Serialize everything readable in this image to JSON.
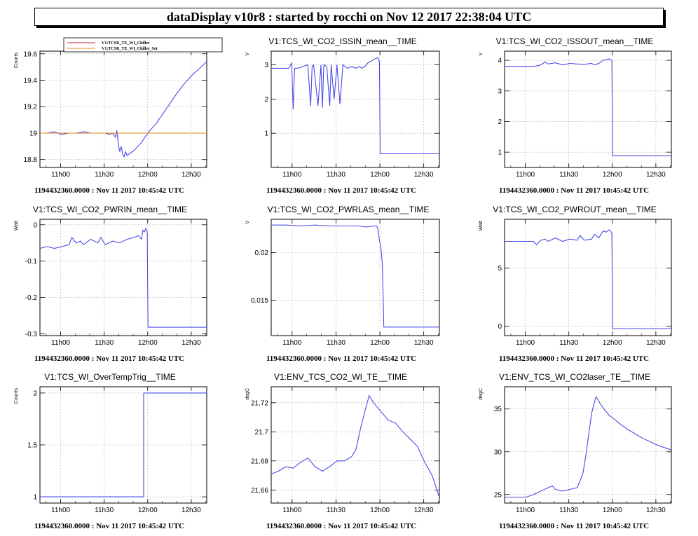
{
  "window": {
    "title": "dataDisplay v10r8 : started by rocchi on Nov 12 2017 22:38:04 UTC"
  },
  "colors": {
    "trace": "#4a4ae8",
    "chiller_set": "#e8851a",
    "chiller_raw": "#c8283c"
  },
  "chart_data": [
    {
      "type": "line",
      "title": "",
      "ylabel": "Counts",
      "xlabel": "",
      "footer": "1194432360.0000 : Nov 11 2017 10:45:42 UTC",
      "xticks": [
        "11h00",
        "11h30",
        "12h00",
        "12h30"
      ],
      "xtick_minutes": [
        14.3,
        44.3,
        74.3,
        104.3
      ],
      "xlim": [
        0,
        115
      ],
      "ylim": [
        18.74,
        19.62
      ],
      "yticks": [
        18.8,
        19,
        19.2,
        19.4,
        19.6
      ],
      "ytick_labels": [
        "18.8",
        "19",
        "19.2",
        "19.4",
        "19.6"
      ],
      "legend": {
        "position": "top",
        "entries": [
          "V1:TCSR_TE_WI_Chiller",
          "V1:TCSR_TE_WI_Chiller_Set"
        ]
      },
      "series": [
        {
          "name": "V1:TCSR_TE_WI_Chiller",
          "color": "#4a4ae8",
          "x": [
            0,
            5,
            10,
            15,
            20,
            25,
            30,
            35,
            40,
            45,
            48,
            50,
            52,
            53,
            54,
            55,
            56,
            57,
            58,
            59,
            60,
            65,
            70,
            75,
            80,
            85,
            90,
            95,
            100,
            105,
            110,
            115
          ],
          "y": [
            19.0,
            19.0,
            19.01,
            18.99,
            19.0,
            19.0,
            19.01,
            19.0,
            19.0,
            19.0,
            18.99,
            19.0,
            18.97,
            19.02,
            18.92,
            18.86,
            18.9,
            18.84,
            18.82,
            18.86,
            18.83,
            18.87,
            18.93,
            19.01,
            19.07,
            19.15,
            19.23,
            19.31,
            19.38,
            19.44,
            19.49,
            19.54
          ]
        },
        {
          "name": "V1:TCSR_TE_WI_Chiller_Set",
          "color": "#e8851a",
          "x": [
            0,
            115
          ],
          "y": [
            19.0,
            19.0
          ]
        }
      ]
    },
    {
      "type": "line",
      "title": "V1:TCS_WI_CO2_ISSIN_mean__TIME",
      "ylabel": "V",
      "xlabel": "",
      "footer": "1194432360.0000 : Nov 11 2017 10:45:42 UTC",
      "xticks": [
        "11h00",
        "11h30",
        "12h00",
        "12h30"
      ],
      "xtick_minutes": [
        14.3,
        44.3,
        74.3,
        104.3
      ],
      "xlim": [
        0,
        115
      ],
      "ylim": [
        0.0,
        3.4
      ],
      "yticks": [
        1,
        2,
        3
      ],
      "ytick_labels": [
        "1",
        "2",
        "3"
      ],
      "series": [
        {
          "name": "",
          "color": "#4a4ae8",
          "x": [
            0,
            12,
            14,
            15,
            16,
            18,
            25,
            27,
            28,
            29,
            32,
            34,
            35,
            36,
            38,
            40,
            41,
            43,
            45,
            47,
            49,
            52,
            55,
            58,
            60,
            62,
            64,
            66,
            70,
            72,
            73,
            74,
            74.5,
            115
          ],
          "y": [
            2.9,
            2.9,
            3.05,
            1.7,
            2.9,
            2.9,
            3.0,
            1.8,
            2.95,
            3.0,
            1.8,
            3.0,
            1.75,
            3.0,
            2.95,
            1.8,
            3.0,
            2.0,
            3.0,
            1.85,
            3.0,
            2.9,
            2.95,
            2.9,
            2.95,
            2.9,
            2.95,
            3.05,
            3.15,
            3.2,
            3.2,
            3.1,
            0.4,
            0.4
          ]
        }
      ]
    },
    {
      "type": "line",
      "title": "V1:TCS_WI_CO2_ISSOUT_mean__TIME",
      "ylabel": "V",
      "xlabel": "",
      "footer": "1194432360.0000 : Nov 11 2017 10:45:42 UTC",
      "xticks": [
        "11h00",
        "11h30",
        "12h00",
        "12h30"
      ],
      "xtick_minutes": [
        14.3,
        44.3,
        74.3,
        104.3
      ],
      "xlim": [
        0,
        115
      ],
      "ylim": [
        0.5,
        4.3
      ],
      "yticks": [
        1,
        2,
        3,
        4
      ],
      "ytick_labels": [
        "1",
        "2",
        "3",
        "4"
      ],
      "series": [
        {
          "name": "",
          "color": "#4a4ae8",
          "x": [
            0,
            20,
            25,
            28,
            30,
            35,
            40,
            45,
            50,
            55,
            60,
            62,
            65,
            68,
            70,
            72,
            73,
            74,
            74.5,
            115
          ],
          "y": [
            3.8,
            3.8,
            3.85,
            3.95,
            3.88,
            3.92,
            3.85,
            3.9,
            3.88,
            3.87,
            3.9,
            3.85,
            3.9,
            4.0,
            4.02,
            4.05,
            4.02,
            4.0,
            0.88,
            0.88
          ]
        }
      ]
    },
    {
      "type": "line",
      "title": "V1:TCS_WI_CO2_PWRIN_mean__TIME",
      "ylabel": "Watt",
      "xlabel": "",
      "footer": "1194432360.0000 : Nov 11 2017 10:45:42 UTC",
      "xticks": [
        "11h00",
        "11h30",
        "12h00",
        "12h30"
      ],
      "xtick_minutes": [
        14.3,
        44.3,
        74.3,
        104.3
      ],
      "xlim": [
        0,
        115
      ],
      "ylim": [
        -0.305,
        0.015
      ],
      "yticks": [
        -0.3,
        -0.2,
        -0.1,
        0
      ],
      "ytick_labels": [
        "-0.3",
        "-0.2",
        "-0.1",
        "0"
      ],
      "series": [
        {
          "name": "",
          "color": "#4a4ae8",
          "x": [
            0,
            5,
            10,
            15,
            20,
            22,
            25,
            28,
            30,
            35,
            40,
            42,
            45,
            50,
            55,
            60,
            65,
            68,
            70,
            71,
            72,
            73,
            74,
            74.5,
            115
          ],
          "y": [
            -0.065,
            -0.06,
            -0.065,
            -0.06,
            -0.055,
            -0.035,
            -0.05,
            -0.045,
            -0.055,
            -0.04,
            -0.05,
            -0.035,
            -0.055,
            -0.045,
            -0.05,
            -0.04,
            -0.035,
            -0.03,
            -0.04,
            -0.015,
            -0.02,
            -0.01,
            -0.02,
            -0.282,
            -0.282
          ]
        }
      ]
    },
    {
      "type": "line",
      "title": "V1:TCS_WI_CO2_PWRLAS_mean__TIME",
      "ylabel": "V",
      "xlabel": "",
      "footer": "1194432360.0000 : Nov 11 2017 10:45:42 UTC",
      "xticks": [
        "11h00",
        "11h30",
        "12h00",
        "12h30"
      ],
      "xtick_minutes": [
        14.3,
        44.3,
        74.3,
        104.3
      ],
      "xlim": [
        0,
        115
      ],
      "ylim": [
        0.0113,
        0.0235
      ],
      "yticks": [
        0.015,
        0.02
      ],
      "ytick_labels": [
        "0.015",
        "0.02"
      ],
      "series": [
        {
          "name": "",
          "color": "#4a4ae8",
          "x": [
            0,
            10,
            20,
            30,
            40,
            50,
            60,
            65,
            70,
            72,
            73,
            74,
            75,
            76,
            77,
            115
          ],
          "y": [
            0.0229,
            0.0229,
            0.0228,
            0.0229,
            0.0228,
            0.0228,
            0.0228,
            0.0227,
            0.0228,
            0.0228,
            0.0225,
            0.0213,
            0.0205,
            0.0188,
            0.0122,
            0.0122
          ]
        }
      ]
    },
    {
      "type": "line",
      "title": "V1:TCS_WI_CO2_PWROUT_mean__TIME",
      "ylabel": "Watt",
      "xlabel": "",
      "footer": "1194432360.0000 : Nov 11 2017 10:45:42 UTC",
      "xticks": [
        "11h00",
        "11h30",
        "12h00",
        "12h30"
      ],
      "xtick_minutes": [
        14.3,
        44.3,
        74.3,
        104.3
      ],
      "xlim": [
        0,
        115
      ],
      "ylim": [
        -0.8,
        9.2
      ],
      "yticks": [
        0,
        5
      ],
      "ytick_labels": [
        "0",
        "5"
      ],
      "series": [
        {
          "name": "",
          "color": "#4a4ae8",
          "x": [
            0,
            20,
            22,
            25,
            28,
            30,
            35,
            40,
            45,
            50,
            52,
            55,
            60,
            62,
            65,
            68,
            70,
            72,
            73,
            74,
            74.5,
            115
          ],
          "y": [
            7.3,
            7.3,
            7.0,
            7.4,
            7.5,
            7.3,
            7.6,
            7.3,
            7.5,
            7.4,
            7.8,
            7.4,
            7.5,
            7.9,
            7.6,
            8.2,
            8.1,
            8.3,
            8.2,
            8.0,
            -0.2,
            -0.2
          ]
        }
      ]
    },
    {
      "type": "line",
      "title": "V1:TCS_WI_OverTempTrig__TIME",
      "ylabel": "Counts",
      "xlabel": "",
      "footer": "1194432360.0000 : Nov 11 2017 10:45:42 UTC",
      "xticks": [
        "11h00",
        "11h30",
        "12h00",
        "12h30"
      ],
      "xtick_minutes": [
        14.3,
        44.3,
        74.3,
        104.3
      ],
      "xlim": [
        0,
        115
      ],
      "ylim": [
        0.94,
        2.06
      ],
      "yticks": [
        1,
        1.5,
        2
      ],
      "ytick_labels": [
        "1",
        "1.5",
        "2"
      ],
      "series": [
        {
          "name": "",
          "color": "#4a4ae8",
          "x": [
            0,
            71.5,
            71.5,
            115
          ],
          "y": [
            1.0,
            1.0,
            2.0,
            2.0
          ]
        }
      ]
    },
    {
      "type": "line",
      "title": "V1:ENV_TCS_CO2_WI_TE__TIME",
      "ylabel": "degC",
      "xlabel": "",
      "footer": "1194432360.0000 : Nov 11 2017 10:45:42 UTC",
      "xticks": [
        "11h00",
        "11h30",
        "12h00",
        "12h30"
      ],
      "xtick_minutes": [
        14.3,
        44.3,
        74.3,
        104.3
      ],
      "xlim": [
        0,
        115
      ],
      "ylim": [
        21.651,
        21.731
      ],
      "yticks": [
        21.66,
        21.68,
        21.7,
        21.72
      ],
      "ytick_labels": [
        "21.66",
        "21.68",
        "21.7",
        "21.72"
      ],
      "series": [
        {
          "name": "",
          "color": "#4a4ae8",
          "x": [
            0,
            5,
            10,
            15,
            20,
            25,
            30,
            35,
            40,
            45,
            50,
            55,
            58,
            61,
            64,
            67,
            70,
            75,
            80,
            85,
            90,
            95,
            100,
            105,
            110,
            115
          ],
          "y": [
            21.671,
            21.673,
            21.676,
            21.675,
            21.679,
            21.682,
            21.676,
            21.673,
            21.676,
            21.68,
            21.68,
            21.683,
            21.688,
            21.702,
            21.714,
            21.725,
            21.72,
            21.714,
            21.708,
            21.706,
            21.7,
            21.695,
            21.69,
            21.679,
            21.67,
            21.655
          ]
        }
      ]
    },
    {
      "type": "line",
      "title": "V1:ENV_TCS_WI_CO2laser_TE__TIME",
      "ylabel": "degC",
      "xlabel": "",
      "footer": "1194432360.0000 : Nov 11 2017 10:45:42 UTC",
      "xticks": [
        "11h00",
        "11h30",
        "12h00",
        "12h30"
      ],
      "xtick_minutes": [
        14.3,
        44.3,
        74.3,
        104.3
      ],
      "xlim": [
        0,
        115
      ],
      "ylim": [
        24.0,
        37.6
      ],
      "yticks": [
        25,
        30,
        35
      ],
      "ytick_labels": [
        "25",
        "30",
        "35"
      ],
      "series": [
        {
          "name": "",
          "color": "#4a4ae8",
          "x": [
            0,
            15,
            20,
            25,
            30,
            33,
            35,
            40,
            45,
            50,
            52,
            54,
            56,
            58,
            60,
            62,
            63,
            64,
            65,
            66,
            67,
            68,
            70,
            72,
            75,
            80,
            85,
            90,
            95,
            100,
            105,
            110,
            115
          ],
          "y": [
            24.7,
            24.7,
            25.0,
            25.4,
            25.8,
            26.0,
            25.6,
            25.4,
            25.6,
            25.8,
            26.6,
            27.5,
            29.5,
            32.0,
            34.5,
            35.8,
            36.4,
            36.2,
            35.9,
            35.6,
            35.4,
            35.1,
            34.7,
            34.3,
            33.9,
            33.2,
            32.6,
            32.1,
            31.6,
            31.2,
            30.8,
            30.5,
            30.2
          ]
        }
      ]
    }
  ]
}
